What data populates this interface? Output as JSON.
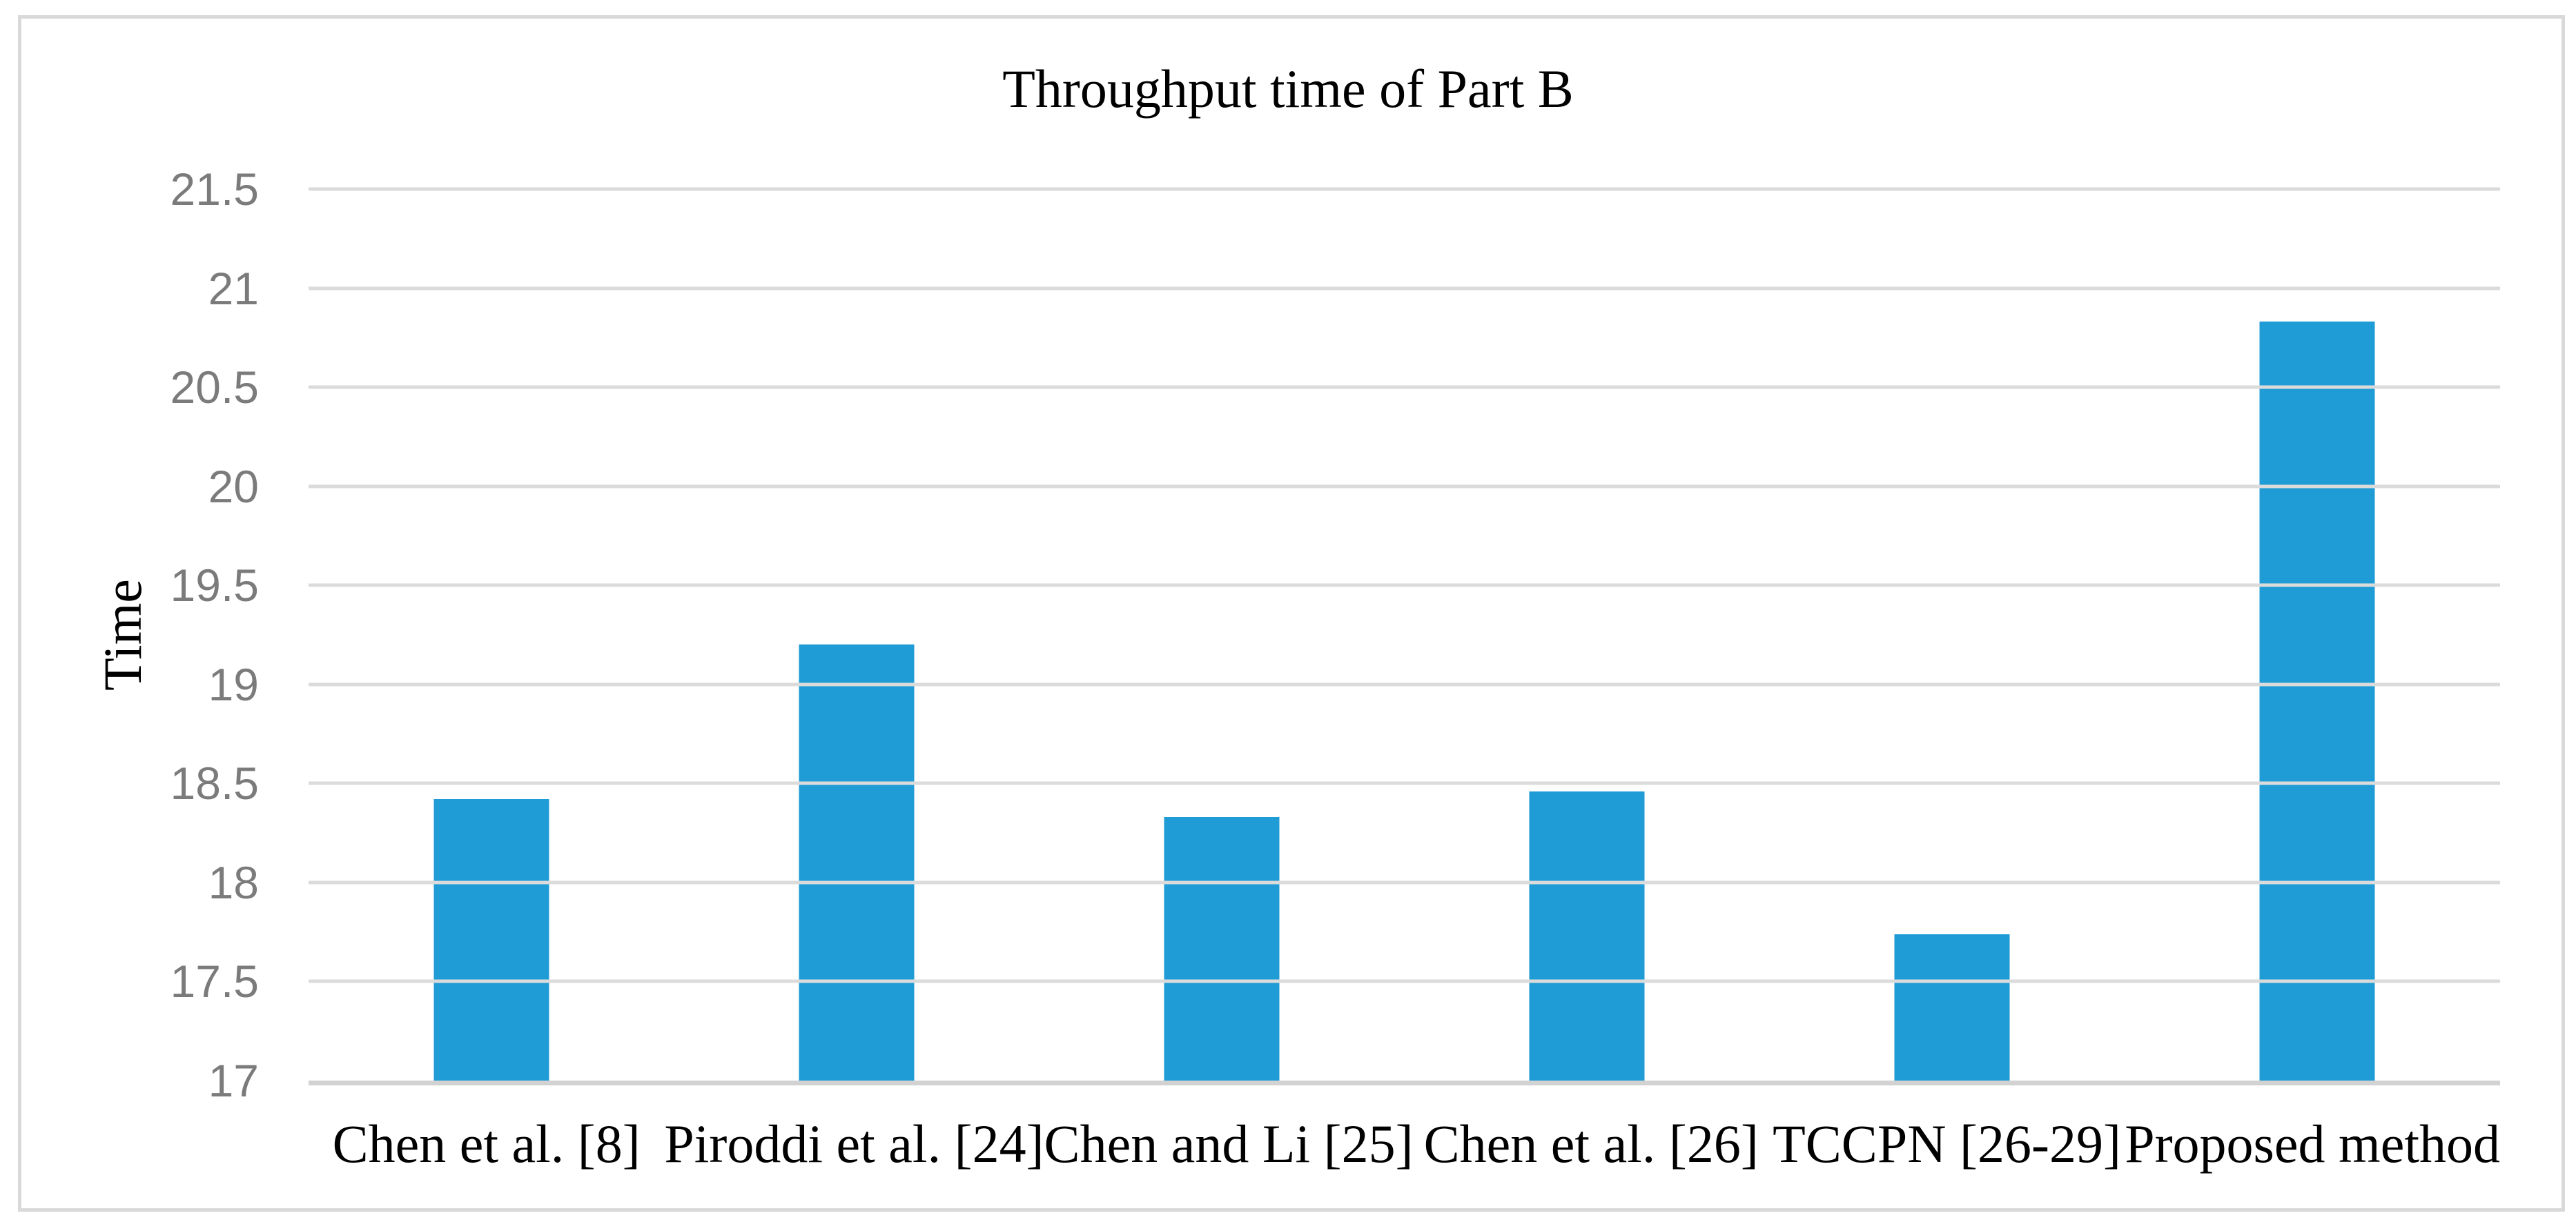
{
  "chart": {
    "title": "Throughput time of Part B",
    "ylabel": "Time"
  },
  "chart_data": {
    "type": "bar",
    "title": "Throughput time of Part B",
    "xlabel": "",
    "ylabel": "Time",
    "categories": [
      "Chen et al. [8]",
      "Piroddi et al. [24]",
      "Chen and Li [25]",
      "Chen et al. [26]",
      "TCCPN [26-29]",
      "Proposed method"
    ],
    "values": [
      18.42,
      19.2,
      18.33,
      18.46,
      17.74,
      20.83
    ],
    "ylim": [
      17,
      21.5
    ],
    "ytick_step": 0.5,
    "ytick_labels": [
      "21.5",
      "21",
      "20.5",
      "20",
      "19.5",
      "19",
      "18.5",
      "18",
      "17.5",
      "17"
    ],
    "grid": true,
    "legend": "none",
    "bar_color": "#1f9bd6",
    "gridline_color": "#dbdbdb",
    "axis_line_color": "#d2d2d2",
    "ytick_color": "#7b7b7b",
    "text_color": "#000000"
  }
}
